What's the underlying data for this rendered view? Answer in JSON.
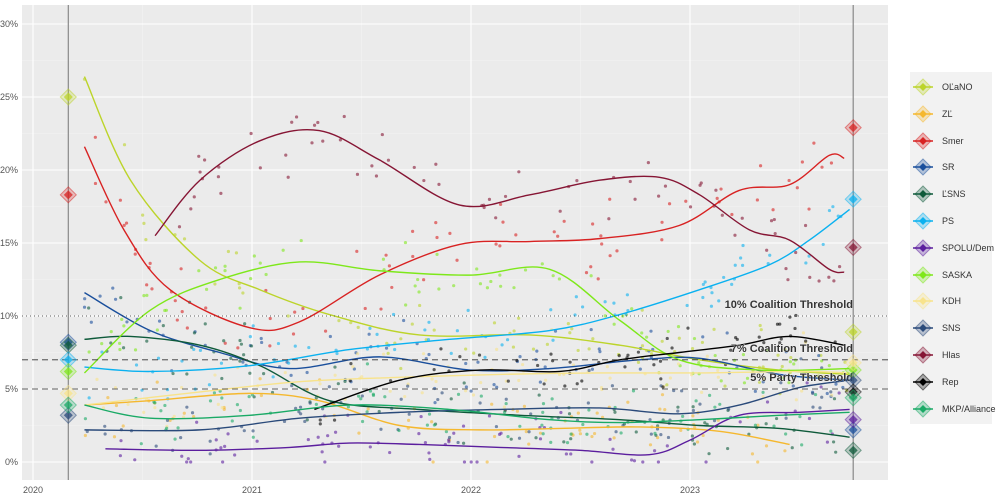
{
  "chart_data": {
    "type": "line",
    "xaxis": {
      "ticks": [
        "2020",
        "2021",
        "2022",
        "2023"
      ],
      "range": [
        "2019-12-15",
        "2023-12-10"
      ]
    },
    "yaxis": {
      "ticks": [
        "0%",
        "5%",
        "10%",
        "15%",
        "20%",
        "25%",
        "30%"
      ],
      "range": [
        -1,
        31
      ]
    },
    "grid": true,
    "legend": "right",
    "elections": [
      "2020-02-29",
      "2023-09-30"
    ],
    "thresholds": [
      {
        "value": 10,
        "label": "10% Coalition Threshold",
        "style": "dotted"
      },
      {
        "value": 7,
        "label": "7% Coalition Threshold",
        "style": "dashed"
      },
      {
        "value": 5,
        "label": "5% Party Threshold",
        "style": "dashed"
      }
    ],
    "series": [
      {
        "name": "OĽaNO",
        "color": "#bcd42a",
        "result_2020": 25.0,
        "result_2023": 8.9,
        "trend": [
          [
            "2020-03-27",
            26.4
          ],
          [
            "2020-06-12",
            19.3
          ],
          [
            "2020-10-06",
            13.8
          ],
          [
            "2021-01-14",
            11.8
          ],
          [
            "2021-05-10",
            10.1
          ],
          [
            "2021-10-07",
            8.7
          ],
          [
            "2022-04-09",
            8.7
          ],
          [
            "2022-09-06",
            8.0
          ],
          [
            "2023-01-17",
            7.0
          ],
          [
            "2023-05-30",
            6.3
          ],
          [
            "2023-09-24",
            6.0
          ]
        ]
      },
      {
        "name": "ZĽ",
        "color": "#f5b82e",
        "result_2020": null,
        "result_2023": null,
        "trend": [
          [
            "2020-03-27",
            3.9
          ],
          [
            "2020-07-15",
            4.2
          ],
          [
            "2020-12-28",
            4.7
          ],
          [
            "2021-04-23",
            4.2
          ],
          [
            "2021-09-04",
            2.5
          ],
          [
            "2022-01-16",
            2.2
          ],
          [
            "2022-05-29",
            2.3
          ],
          [
            "2022-10-09",
            2.4
          ],
          [
            "2023-02-19",
            2.1
          ],
          [
            "2023-06-16",
            1.2
          ]
        ]
      },
      {
        "name": "Smer",
        "color": "#d82222",
        "result_2020": 18.3,
        "result_2023": 22.9,
        "trend": [
          [
            "2020-03-27",
            21.6
          ],
          [
            "2020-06-01",
            15.9
          ],
          [
            "2020-08-17",
            11.8
          ],
          [
            "2020-12-28",
            9.2
          ],
          [
            "2021-03-21",
            9.6
          ],
          [
            "2021-08-01",
            12.8
          ],
          [
            "2021-12-13",
            14.9
          ],
          [
            "2022-04-09",
            15.1
          ],
          [
            "2022-08-03",
            15.3
          ],
          [
            "2022-12-14",
            16.2
          ],
          [
            "2023-03-24",
            18.6
          ],
          [
            "2023-06-16",
            19.0
          ],
          [
            "2023-08-21",
            21.0
          ],
          [
            "2023-09-15",
            20.8
          ]
        ]
      },
      {
        "name": "SR",
        "color": "#1a4f9c",
        "result_2020": 8.2,
        "result_2023": 2.2,
        "trend": [
          [
            "2020-03-27",
            11.6
          ],
          [
            "2020-07-15",
            9.0
          ],
          [
            "2020-11-08",
            7.5
          ],
          [
            "2021-03-05",
            6.4
          ],
          [
            "2021-08-01",
            7.2
          ],
          [
            "2021-12-30",
            6.3
          ],
          [
            "2022-05-12",
            6.4
          ],
          [
            "2022-10-09",
            7.0
          ],
          [
            "2023-01-17",
            7.1
          ],
          [
            "2023-05-30",
            6.0
          ],
          [
            "2023-09-24",
            5.6
          ]
        ]
      },
      {
        "name": "ĽSNS",
        "color": "#0e5a3a",
        "result_2020": 8.0,
        "result_2023": 0.8,
        "trend": [
          [
            "2020-03-27",
            8.4
          ],
          [
            "2020-06-12",
            8.6
          ],
          [
            "2020-10-06",
            8.0
          ],
          [
            "2021-01-14",
            6.6
          ],
          [
            "2021-05-10",
            4.2
          ],
          [
            "2021-10-07",
            3.6
          ],
          [
            "2022-03-24",
            3.2
          ],
          [
            "2022-09-06",
            2.9
          ],
          [
            "2023-01-17",
            2.5
          ],
          [
            "2023-05-30",
            2.3
          ],
          [
            "2023-09-24",
            1.7
          ]
        ]
      },
      {
        "name": "PS",
        "color": "#0ab1f0",
        "result_2020": 7.0,
        "result_2023": 18.0,
        "trend": [
          [
            "2020-03-27",
            6.5
          ],
          [
            "2020-07-15",
            6.2
          ],
          [
            "2020-12-28",
            6.6
          ],
          [
            "2021-06-12",
            7.7
          ],
          [
            "2021-11-26",
            8.4
          ],
          [
            "2022-05-12",
            9.0
          ],
          [
            "2022-09-06",
            10.1
          ],
          [
            "2023-01-17",
            11.8
          ],
          [
            "2023-05-13",
            13.5
          ],
          [
            "2023-07-19",
            15.2
          ],
          [
            "2023-09-24",
            17.3
          ]
        ]
      },
      {
        "name": "SPOLU/Dem",
        "color": "#5b1e9e",
        "result_2020": null,
        "result_2023": 2.9,
        "trend": [
          [
            "2020-05-01",
            0.9
          ],
          [
            "2020-10-06",
            0.8
          ],
          [
            "2021-03-05",
            1.0
          ],
          [
            "2021-06-12",
            1.3
          ],
          [
            "2021-10-07",
            1.2
          ],
          [
            "2022-02-18",
            1.0
          ],
          [
            "2022-07-01",
            0.8
          ],
          [
            "2022-10-25",
            0.5
          ],
          [
            "2023-01-01",
            1.5
          ],
          [
            "2023-03-24",
            3.2
          ],
          [
            "2023-07-02",
            3.4
          ],
          [
            "2023-09-24",
            3.6
          ]
        ]
      },
      {
        "name": "SASKA",
        "color": "#7ee81a",
        "result_2020": 6.2,
        "result_2023": 6.3,
        "trend": [
          [
            "2020-03-27",
            6.1
          ],
          [
            "2020-07-15",
            10.4
          ],
          [
            "2020-11-08",
            12.5
          ],
          [
            "2021-03-21",
            13.7
          ],
          [
            "2021-08-01",
            13.1
          ],
          [
            "2021-12-30",
            12.8
          ],
          [
            "2022-05-12",
            13.2
          ],
          [
            "2022-09-06",
            9.7
          ],
          [
            "2022-12-14",
            7.0
          ],
          [
            "2023-04-27",
            6.3
          ],
          [
            "2023-09-24",
            6.4
          ]
        ]
      },
      {
        "name": "KDH",
        "color": "#f8e38b",
        "result_2020": 4.7,
        "result_2023": 6.8,
        "trend": [
          [
            "2020-03-27",
            3.9
          ],
          [
            "2020-10-06",
            4.8
          ],
          [
            "2021-03-21",
            5.5
          ],
          [
            "2021-09-04",
            5.8
          ],
          [
            "2022-02-18",
            6.0
          ],
          [
            "2022-08-03",
            6.1
          ],
          [
            "2023-01-17",
            6.1
          ],
          [
            "2023-07-02",
            6.2
          ],
          [
            "2023-09-24",
            6.1
          ]
        ]
      },
      {
        "name": "SNS",
        "color": "#2a4a7a",
        "result_2020": 3.2,
        "result_2023": 5.6,
        "trend": [
          [
            "2020-03-27",
            2.2
          ],
          [
            "2020-10-06",
            2.2
          ],
          [
            "2021-03-21",
            3.0
          ],
          [
            "2021-09-04",
            3.4
          ],
          [
            "2022-02-18",
            3.6
          ],
          [
            "2022-08-03",
            3.7
          ],
          [
            "2022-12-14",
            3.3
          ],
          [
            "2023-03-24",
            3.9
          ],
          [
            "2023-07-02",
            5.1
          ],
          [
            "2023-09-24",
            5.6
          ]
        ]
      },
      {
        "name": "Hlas",
        "color": "#861534",
        "result_2020": null,
        "result_2023": 14.7,
        "trend": [
          [
            "2020-07-23",
            15.5
          ],
          [
            "2020-10-06",
            19.3
          ],
          [
            "2021-01-14",
            22.0
          ],
          [
            "2021-04-23",
            22.7
          ],
          [
            "2021-08-01",
            20.7
          ],
          [
            "2021-12-13",
            17.6
          ],
          [
            "2022-04-09",
            18.3
          ],
          [
            "2022-08-03",
            19.3
          ],
          [
            "2022-11-11",
            19.5
          ],
          [
            "2023-01-17",
            18.3
          ],
          [
            "2023-04-10",
            15.9
          ],
          [
            "2023-06-16",
            15.2
          ],
          [
            "2023-08-21",
            13.2
          ],
          [
            "2023-09-15",
            13.0
          ]
        ]
      },
      {
        "name": "Rep",
        "color": "#000000",
        "result_2020": null,
        "result_2023": 4.8,
        "trend": [
          [
            "2021-04-15",
            3.6
          ],
          [
            "2021-09-04",
            5.6
          ],
          [
            "2022-01-16",
            6.3
          ],
          [
            "2022-05-29",
            6.2
          ],
          [
            "2022-09-06",
            7.0
          ],
          [
            "2022-12-14",
            7.5
          ],
          [
            "2023-03-24",
            8.0
          ],
          [
            "2023-06-16",
            8.6
          ],
          [
            "2023-09-15",
            8.0
          ]
        ]
      },
      {
        "name": "MKP/Alliance",
        "color": "#1aaa66",
        "result_2020": 3.9,
        "result_2023": 4.4,
        "trend": [
          [
            "2020-03-27",
            3.9
          ],
          [
            "2020-07-15",
            3.0
          ],
          [
            "2020-12-28",
            3.2
          ],
          [
            "2021-06-12",
            3.9
          ],
          [
            "2021-11-26",
            3.6
          ],
          [
            "2022-05-12",
            2.9
          ],
          [
            "2022-09-06",
            2.7
          ],
          [
            "2023-01-17",
            2.9
          ],
          [
            "2023-05-30",
            3.2
          ],
          [
            "2023-09-24",
            3.4
          ]
        ]
      }
    ]
  }
}
